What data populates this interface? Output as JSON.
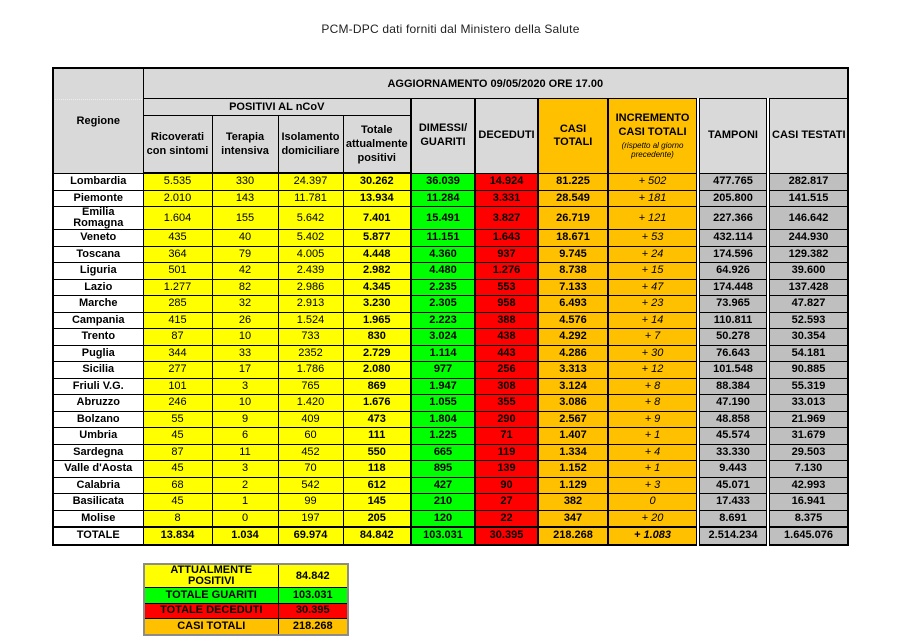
{
  "title": "PCM-DPC dati forniti dal Ministero della Salute",
  "chart_data": {
    "type": "table",
    "update_header": "AGGIORNAMENTO 09/05/2020 ORE 17.00",
    "region_header": "Regione",
    "group_header": "POSITIVI AL nCoV",
    "columns": [
      "Ricoverati con sintomi",
      "Terapia intensiva",
      "Isolamento domiciliare",
      "Totale attualmente positivi",
      "DIMESSI/ GUARITI",
      "DECEDUTI",
      "CASI TOTALI",
      "INCREMENTO CASI TOTALI",
      "TAMPONI",
      "CASI TESTATI"
    ],
    "increment_note": "(rispetto al giorno precedente)",
    "rows": [
      [
        "Lombardia",
        "5.535",
        "330",
        "24.397",
        "30.262",
        "36.039",
        "14.924",
        "81.225",
        "+ 502",
        "477.765",
        "282.817"
      ],
      [
        "Piemonte",
        "2.010",
        "143",
        "11.781",
        "13.934",
        "11.284",
        "3.331",
        "28.549",
        "+ 181",
        "205.800",
        "141.515"
      ],
      [
        "Emilia Romagna",
        "1.604",
        "155",
        "5.642",
        "7.401",
        "15.491",
        "3.827",
        "26.719",
        "+ 121",
        "227.366",
        "146.642"
      ],
      [
        "Veneto",
        "435",
        "40",
        "5.402",
        "5.877",
        "11.151",
        "1.643",
        "18.671",
        "+ 53",
        "432.114",
        "244.930"
      ],
      [
        "Toscana",
        "364",
        "79",
        "4.005",
        "4.448",
        "4.360",
        "937",
        "9.745",
        "+ 24",
        "174.596",
        "129.382"
      ],
      [
        "Liguria",
        "501",
        "42",
        "2.439",
        "2.982",
        "4.480",
        "1.276",
        "8.738",
        "+ 15",
        "64.926",
        "39.600"
      ],
      [
        "Lazio",
        "1.277",
        "82",
        "2.986",
        "4.345",
        "2.235",
        "553",
        "7.133",
        "+ 47",
        "174.448",
        "137.428"
      ],
      [
        "Marche",
        "285",
        "32",
        "2.913",
        "3.230",
        "2.305",
        "958",
        "6.493",
        "+ 23",
        "73.965",
        "47.827"
      ],
      [
        "Campania",
        "415",
        "26",
        "1.524",
        "1.965",
        "2.223",
        "388",
        "4.576",
        "+ 14",
        "110.811",
        "52.593"
      ],
      [
        "Trento",
        "87",
        "10",
        "733",
        "830",
        "3.024",
        "438",
        "4.292",
        "+ 7",
        "50.278",
        "30.354"
      ],
      [
        "Puglia",
        "344",
        "33",
        "2352",
        "2.729",
        "1.114",
        "443",
        "4.286",
        "+ 30",
        "76.643",
        "54.181"
      ],
      [
        "Sicilia",
        "277",
        "17",
        "1.786",
        "2.080",
        "977",
        "256",
        "3.313",
        "+ 12",
        "101.548",
        "90.885"
      ],
      [
        "Friuli V.G.",
        "101",
        "3",
        "765",
        "869",
        "1.947",
        "308",
        "3.124",
        "+ 8",
        "88.384",
        "55.319"
      ],
      [
        "Abruzzo",
        "246",
        "10",
        "1.420",
        "1.676",
        "1.055",
        "355",
        "3.086",
        "+ 8",
        "47.190",
        "33.013"
      ],
      [
        "Bolzano",
        "55",
        "9",
        "409",
        "473",
        "1.804",
        "290",
        "2.567",
        "+ 9",
        "48.858",
        "21.969"
      ],
      [
        "Umbria",
        "45",
        "6",
        "60",
        "111",
        "1.225",
        "71",
        "1.407",
        "+ 1",
        "45.574",
        "31.679"
      ],
      [
        "Sardegna",
        "87",
        "11",
        "452",
        "550",
        "665",
        "119",
        "1.334",
        "+ 4",
        "33.330",
        "29.503"
      ],
      [
        "Valle d'Aosta",
        "45",
        "3",
        "70",
        "118",
        "895",
        "139",
        "1.152",
        "+ 1",
        "9.443",
        "7.130"
      ],
      [
        "Calabria",
        "68",
        "2",
        "542",
        "612",
        "427",
        "90",
        "1.129",
        "+ 3",
        "45.071",
        "42.993"
      ],
      [
        "Basilicata",
        "45",
        "1",
        "99",
        "145",
        "210",
        "27",
        "382",
        "0",
        "17.433",
        "16.941"
      ],
      [
        "Molise",
        "8",
        "0",
        "197",
        "205",
        "120",
        "22",
        "347",
        "+ 20",
        "8.691",
        "8.375"
      ]
    ],
    "total_row": [
      "TOTALE",
      "13.834",
      "1.034",
      "69.974",
      "84.842",
      "103.031",
      "30.395",
      "218.268",
      "+ 1.083",
      "2.514.234",
      "1.645.076"
    ]
  },
  "legend": {
    "rows": [
      {
        "label": "ATTUALMENTE POSITIVI",
        "value": "84.842",
        "color": "#FFFF00"
      },
      {
        "label": "TOTALE GUARITI",
        "value": "103.031",
        "color": "#00FF00"
      },
      {
        "label": "TOTALE DECEDUTI",
        "value": "30.395",
        "color": "#FF0000"
      },
      {
        "label": "CASI TOTALI",
        "value": "218.268",
        "color": "#FFC000"
      }
    ]
  },
  "colors": {
    "yellow": "#FFFF00",
    "green": "#00FF00",
    "red": "#FF0000",
    "orange": "#FFC000",
    "header_gray": "#D9D9D9",
    "cell_gray": "#BFBFBF"
  }
}
